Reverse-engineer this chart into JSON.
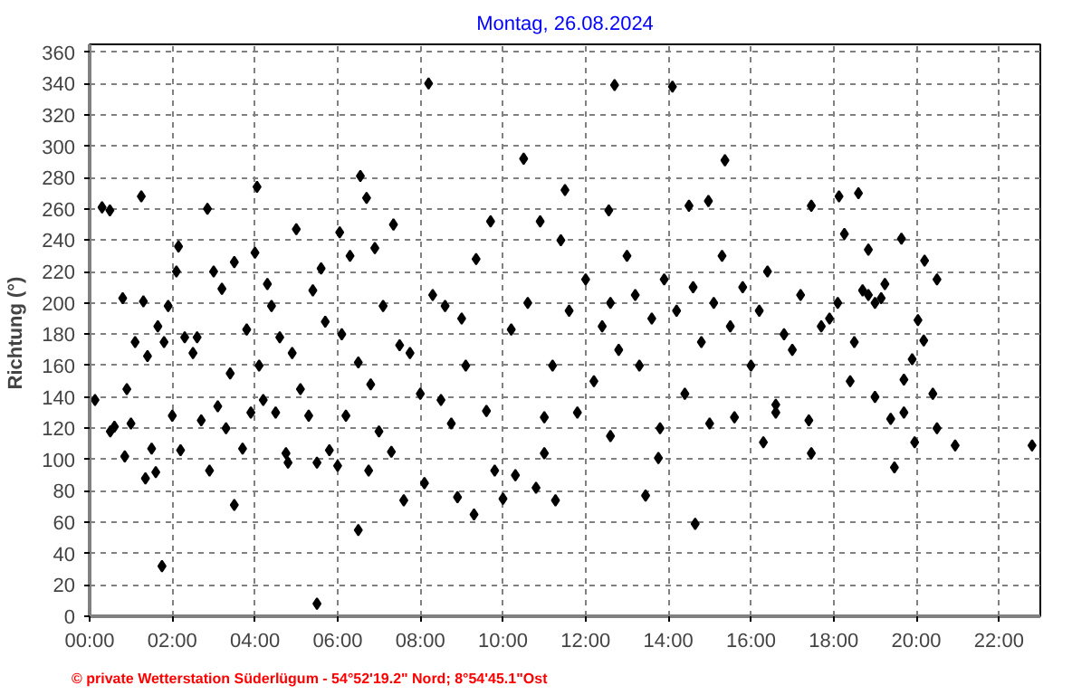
{
  "chart_data": {
    "type": "scatter",
    "title": "Montag, 26.08.2024",
    "ylabel": "Richtung  (°)",
    "annotations": [
      "© private Wetterstation Süderlügum - 54°52'19.2\" Nord; 8°54'45.1\"Ost"
    ],
    "marker": "diamond",
    "grid": true,
    "xlim": [
      0,
      23
    ],
    "ylim": [
      0,
      365
    ],
    "xticks": [
      {
        "value": 0,
        "label": "00:00"
      },
      {
        "value": 2,
        "label": "02:00"
      },
      {
        "value": 4,
        "label": "04:00"
      },
      {
        "value": 6,
        "label": "06:00"
      },
      {
        "value": 8,
        "label": "08:00"
      },
      {
        "value": 10,
        "label": "10:00"
      },
      {
        "value": 12,
        "label": "12:00"
      },
      {
        "value": 14,
        "label": "14:00"
      },
      {
        "value": 16,
        "label": "16:00"
      },
      {
        "value": 18,
        "label": "18:00"
      },
      {
        "value": 20,
        "label": "20:00"
      },
      {
        "value": 22,
        "label": "22:00"
      }
    ],
    "yticks": [
      0,
      20,
      40,
      60,
      80,
      100,
      120,
      140,
      160,
      180,
      200,
      220,
      240,
      260,
      280,
      300,
      320,
      340,
      360
    ],
    "series": [
      {
        "color": "#000000",
        "x": [
          0.13,
          0.3,
          0.49,
          0.5,
          0.6,
          0.8,
          0.85,
          0.9,
          1.0,
          1.1,
          1.25,
          1.3,
          1.35,
          1.4,
          1.5,
          1.6,
          1.65,
          1.75,
          1.8,
          1.9,
          2.0,
          2.1,
          2.15,
          2.2,
          2.3,
          2.5,
          2.6,
          2.7,
          2.85,
          2.9,
          3.0,
          3.1,
          3.2,
          3.3,
          3.4,
          3.5,
          3.5,
          3.7,
          3.8,
          3.9,
          4.0,
          4.05,
          4.1,
          4.2,
          4.3,
          4.4,
          4.5,
          4.6,
          4.75,
          4.8,
          4.9,
          5.0,
          5.1,
          5.3,
          5.4,
          5.5,
          5.5,
          5.6,
          5.7,
          5.8,
          6.0,
          6.05,
          6.1,
          6.2,
          6.3,
          6.5,
          6.5,
          6.55,
          6.7,
          6.75,
          6.8,
          6.9,
          7.0,
          7.1,
          7.3,
          7.35,
          7.5,
          7.6,
          7.75,
          8.0,
          8.1,
          8.2,
          8.3,
          8.5,
          8.6,
          8.75,
          8.9,
          9.0,
          9.1,
          9.3,
          9.35,
          9.6,
          9.7,
          9.8,
          10.0,
          10.2,
          10.3,
          10.5,
          10.6,
          10.8,
          10.9,
          11.0,
          11.0,
          11.2,
          11.27,
          11.4,
          11.5,
          11.6,
          11.8,
          12.0,
          12.2,
          12.4,
          12.56,
          12.6,
          12.6,
          12.7,
          12.8,
          13.0,
          13.2,
          13.3,
          13.45,
          13.6,
          13.76,
          13.8,
          13.9,
          14.1,
          14.2,
          14.4,
          14.5,
          14.6,
          14.65,
          14.8,
          14.97,
          15.0,
          15.1,
          15.3,
          15.37,
          15.5,
          15.6,
          15.8,
          16.0,
          16.2,
          16.3,
          16.4,
          16.6,
          16.6,
          16.8,
          17.0,
          17.2,
          17.4,
          17.46,
          17.46,
          17.7,
          17.9,
          18.1,
          18.13,
          18.26,
          18.4,
          18.5,
          18.6,
          18.7,
          18.84,
          18.84,
          19.0,
          19.0,
          19.15,
          19.24,
          19.38,
          19.47,
          19.64,
          19.7,
          19.7,
          19.9,
          19.96,
          20.04,
          20.18,
          20.2,
          20.4,
          20.5,
          20.5,
          20.94,
          22.8
        ],
        "values": [
          138,
          261,
          259,
          118,
          121,
          203,
          102,
          145,
          123,
          175,
          268,
          201,
          88,
          166,
          107,
          92,
          185,
          32,
          175,
          198,
          128,
          220,
          236,
          106,
          178,
          168,
          178,
          125,
          260,
          93,
          220,
          134,
          209,
          120,
          155,
          226,
          71,
          107,
          183,
          130,
          232,
          274,
          160,
          138,
          212,
          198,
          130,
          178,
          104,
          98,
          168,
          247,
          145,
          128,
          208,
          8,
          98,
          222,
          188,
          106,
          96,
          245,
          180,
          128,
          230,
          162,
          55,
          281,
          267,
          93,
          148,
          235,
          118,
          198,
          105,
          250,
          173,
          74,
          168,
          142,
          85,
          340,
          205,
          138,
          198,
          123,
          76,
          190,
          160,
          65,
          228,
          131,
          252,
          93,
          75,
          183,
          90,
          292,
          200,
          82,
          252,
          104,
          127,
          160,
          74,
          240,
          272,
          195,
          130,
          215,
          150,
          185,
          259,
          200,
          115,
          339,
          170,
          230,
          205,
          160,
          77,
          190,
          101,
          120,
          215,
          338,
          195,
          142,
          262,
          210,
          59,
          175,
          265,
          123,
          200,
          230,
          291,
          185,
          127,
          210,
          160,
          195,
          111,
          220,
          135,
          130,
          180,
          170,
          205,
          125,
          262,
          104,
          185,
          190,
          200,
          268,
          244,
          150,
          175,
          270,
          208,
          234,
          205,
          200,
          140,
          203,
          212,
          126,
          95,
          241,
          130,
          151,
          164,
          111,
          189,
          176,
          227,
          142,
          215,
          120,
          109,
          109
        ]
      }
    ]
  }
}
